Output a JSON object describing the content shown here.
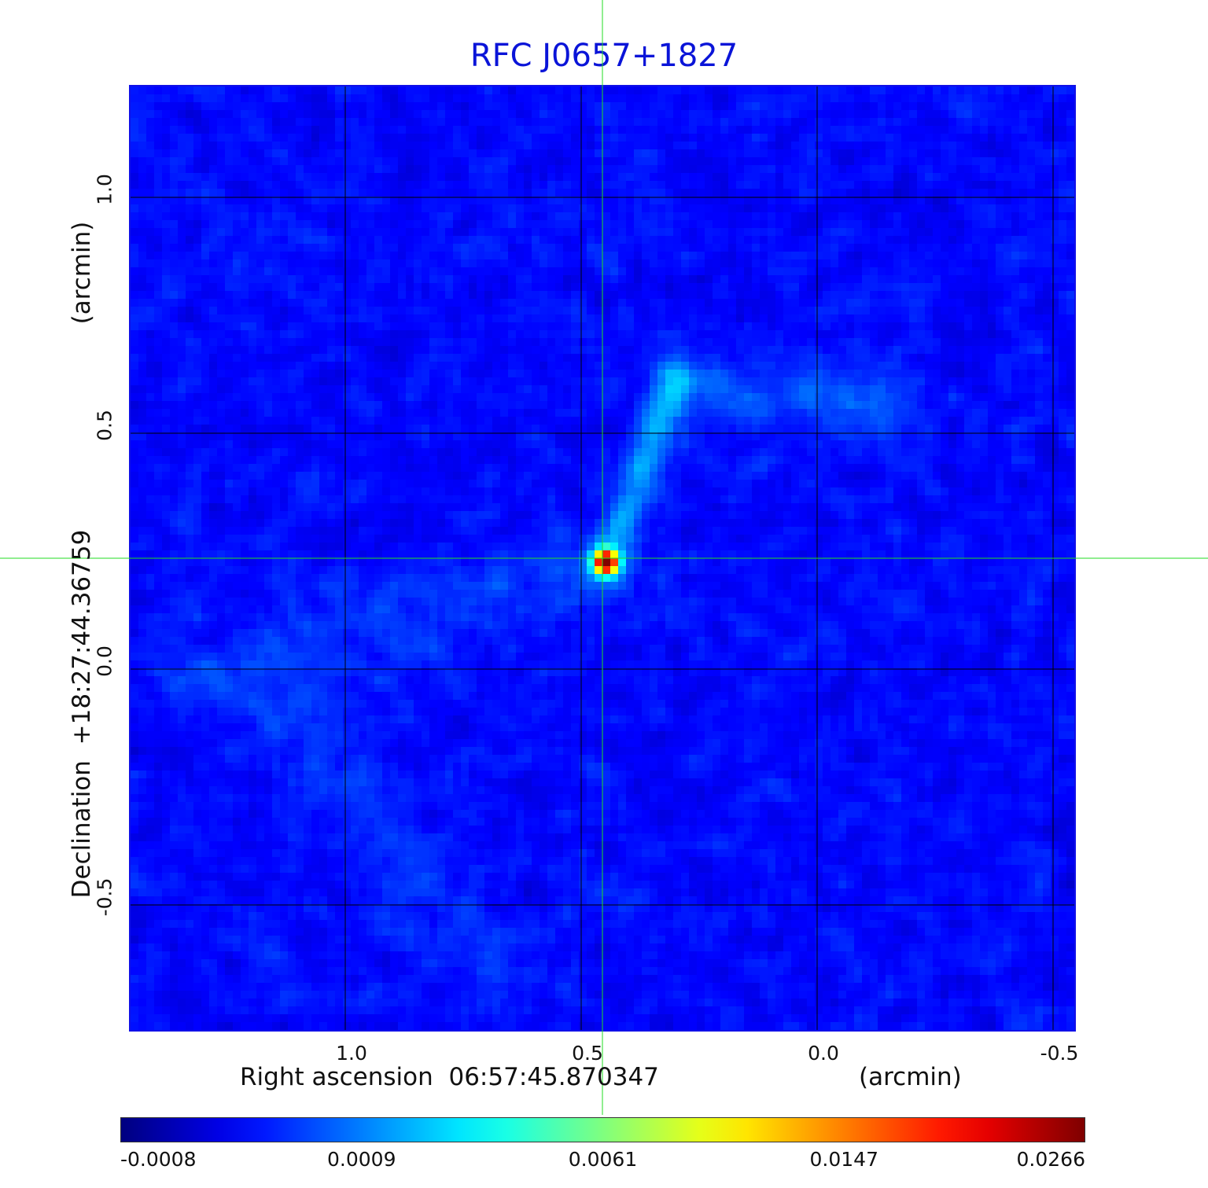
{
  "title": "RFC J0657+1827",
  "chart_data": {
    "type": "heatmap",
    "title": "RFC J0657+1827",
    "xlabel": "Right ascension  06:57:45.870347",
    "xunit": "(arcmin)",
    "ylabel": "Declination  +18:27:44.36759",
    "yunit": "(arcmin)",
    "xticks": [
      "1.0",
      "0.5",
      "0.0",
      "-0.5"
    ],
    "xtick_values": [
      1.0,
      0.5,
      0.0,
      -0.5
    ],
    "yticks": [
      "1.0",
      "0.5",
      "0.0",
      "-0.5"
    ],
    "ytick_values": [
      1.0,
      0.5,
      0.0,
      -0.5
    ],
    "xlim": [
      1.455,
      -0.545
    ],
    "ylim": [
      -0.765,
      1.235
    ],
    "grid": true,
    "crosshair": {
      "x": 0.455,
      "y": 0.235,
      "color": "#22dd22"
    },
    "source_peak": {
      "x": 0.455,
      "y": 0.235,
      "value": 0.0266
    },
    "colorbar": {
      "colormap": "jet",
      "tick_labels": [
        "-0.0008",
        "0.0009",
        "0.0061",
        "0.0147",
        "0.0266"
      ],
      "tick_values": [
        -0.0008,
        0.0009,
        0.0061,
        0.0147,
        0.0266
      ],
      "range": [
        -0.0008,
        0.0266
      ]
    },
    "colors": {
      "title": "#0a14d8",
      "frame": "#1010e8",
      "grid": "#000000"
    }
  }
}
